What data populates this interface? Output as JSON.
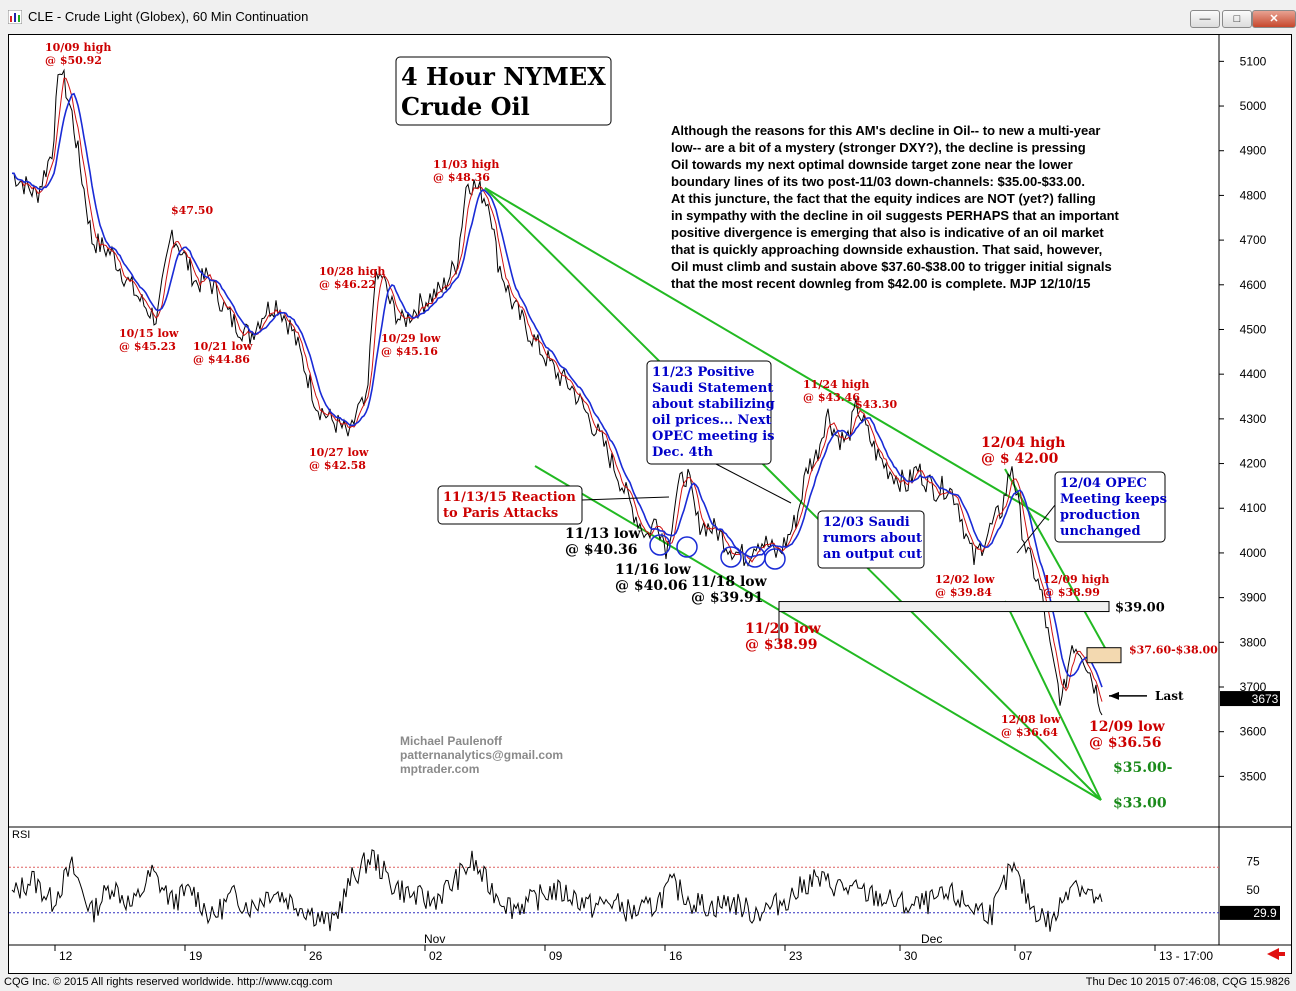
{
  "window": {
    "title": "CLE - Crude Light (Globex), 60 Min Continuation",
    "buttons": [
      "minimize-button",
      "restore-button",
      "close-button"
    ]
  },
  "status": {
    "left": "CQG Inc. © 2015 All rights reserved worldwide. http://www.cqg.com",
    "right": "Thu Dec 10 2015 07:46:08, CQG 15.9826"
  },
  "chart_data": {
    "type": "line",
    "title": "4 Hour NYMEX\nCrude Oil",
    "title_lines": [
      "4 Hour NYMEX",
      "Crude Oil"
    ],
    "ylim": [
      3380,
      5150
    ],
    "y_ticks": [
      "5100",
      "5000",
      "4900",
      "4800",
      "4700",
      "4600",
      "4500",
      "4400",
      "4300",
      "4200",
      "4100",
      "4000",
      "3900",
      "3800",
      "3700",
      "3600",
      "3500"
    ],
    "x_ticks": [
      "12",
      "19",
      "26",
      "02",
      "09",
      "16",
      "23",
      "30",
      "07",
      "13 - 17:00"
    ],
    "month_labels": [
      "Nov",
      "Dec"
    ],
    "last_value": "3673",
    "series": [
      {
        "name": "price",
        "x": [
          0,
          25,
          40,
          48,
          60,
          80,
          100,
          115,
          130,
          145,
          160,
          175,
          185,
          195,
          205,
          220,
          238,
          252,
          265,
          280,
          292,
          305,
          318,
          330,
          338,
          345,
          355,
          362,
          370,
          378,
          390,
          410,
          430,
          445,
          455,
          468,
          478,
          485,
          500,
          515,
          530,
          545,
          560,
          575,
          590,
          605,
          620,
          635,
          645,
          655,
          665,
          675,
          685,
          695,
          705,
          715,
          725,
          735,
          745,
          755,
          765,
          775,
          785,
          795,
          805,
          815,
          825,
          835,
          845,
          855,
          865,
          875,
          885,
          895,
          905,
          915,
          925,
          935,
          945,
          955,
          962,
          970,
          980,
          990,
          1000,
          1008,
          1015,
          1022,
          1030,
          1040,
          1050,
          1060,
          1070,
          1080,
          1090
        ],
        "values": [
          4850,
          4800,
          4900,
          5092,
          4980,
          4700,
          4670,
          4610,
          4560,
          4523,
          4720,
          4650,
          4600,
          4620,
          4580,
          4520,
          4486,
          4540,
          4560,
          4500,
          4420,
          4330,
          4300,
          4280,
          4258,
          4320,
          4330,
          4600,
          4622,
          4560,
          4516,
          4560,
          4590,
          4650,
          4836,
          4810,
          4780,
          4660,
          4560,
          4500,
          4450,
          4400,
          4370,
          4310,
          4250,
          4180,
          4100,
          4036,
          4080,
          4006,
          4140,
          4180,
          4070,
          4060,
          4050,
          4020,
          4000,
          3991,
          4030,
          4020,
          3995,
          4030,
          4080,
          4190,
          4220,
          4316,
          4260,
          4250,
          4330,
          4270,
          4220,
          4190,
          4170,
          4150,
          4190,
          4160,
          4140,
          4150,
          4120,
          4030,
          3984,
          4020,
          4060,
          4100,
          4200,
          4080,
          4000,
          3960,
          3900,
          3760,
          3664,
          3800,
          3780,
          3720,
          3656
        ]
      },
      {
        "name": "rsi",
        "x": [
          0,
          20,
          40,
          60,
          80,
          100,
          120,
          140,
          160,
          180,
          200,
          220,
          240,
          260,
          280,
          300,
          320,
          340,
          360,
          380,
          400,
          420,
          440,
          460,
          480,
          500,
          520,
          540,
          560,
          580,
          600,
          620,
          640,
          660,
          680,
          700,
          720,
          740,
          760,
          780,
          800,
          820,
          840,
          860,
          880,
          900,
          920,
          940,
          960,
          980,
          1000,
          1020,
          1040,
          1060,
          1080,
          1090
        ],
        "values": [
          45,
          60,
          40,
          70,
          30,
          55,
          35,
          65,
          40,
          50,
          25,
          45,
          35,
          50,
          40,
          30,
          20,
          60,
          80,
          55,
          45,
          40,
          55,
          75,
          50,
          35,
          40,
          50,
          45,
          35,
          40,
          30,
          35,
          55,
          40,
          35,
          40,
          30,
          35,
          45,
          60,
          55,
          50,
          45,
          40,
          35,
          40,
          45,
          35,
          30,
          70,
          35,
          20,
          60,
          45,
          35
        ]
      }
    ],
    "rsi": {
      "label": "RSI",
      "levels": [
        "75",
        "50"
      ],
      "last": "29.9"
    },
    "levels": {
      "h39": "$39.00",
      "zone": "$37.60-$38.00",
      "t35": "$35.00-",
      "t33": "$33.00",
      "last": "Last"
    },
    "annotations": {
      "a1009": [
        "10/09 high",
        "@ $50.92"
      ],
      "a4750": [
        "$47.50"
      ],
      "a1015": [
        "10/15 low",
        "@ $45.23"
      ],
      "a1021": [
        "10/21 low",
        "@ $44.86"
      ],
      "a1027": [
        "10/27 low",
        "@ $42.58"
      ],
      "a1028": [
        "10/28 high",
        "@ $46.22"
      ],
      "a1029": [
        "10/29 low",
        "@ $45.16"
      ],
      "a1103": [
        "11/03 high",
        "@ $48.36"
      ],
      "a1124": [
        "11/24 high",
        "@ $43.46"
      ],
      "a4330": [
        "$43.30"
      ],
      "a1202": [
        "12/02 low",
        "@ $39.84"
      ],
      "a1208": [
        "12/08 low",
        "@ $36.64"
      ],
      "a1209h": [
        "12/09 high",
        "@ $38.99"
      ],
      "a1204": [
        "12/04 high",
        "@ $ 42.00"
      ],
      "a1209l": [
        "12/09 low",
        "@ $36.56"
      ],
      "a1120": [
        "11/20 low",
        "@ $38.99"
      ],
      "a1113": [
        "11/13 low",
        "@ $40.36"
      ],
      "a1116": [
        "11/16 low",
        "@ $40.06"
      ],
      "a1118": [
        "11/18 low",
        "@ $39.91"
      ]
    },
    "boxes": {
      "paris": [
        "11/13/15 Reaction",
        "to Paris Attacks"
      ],
      "saudi1123": [
        "11/23 Positive",
        "Saudi Statement",
        "about stabilizing",
        "oil prices... Next",
        "OPEC meeting is",
        "Dec. 4th"
      ],
      "saudi1203": [
        "12/03 Saudi",
        "rumors about",
        "an output cut"
      ],
      "opec1204": [
        "12/04 OPEC",
        "Meeting keeps",
        "production",
        "unchanged"
      ]
    },
    "commentary": [
      "Although the reasons for this AM's decline in Oil-- to new a multi-year",
      "low-- are a bit of a mystery (stronger DXY?), the decline is pressing",
      "Oil towards my next optimal downside target zone near the lower",
      "boundary lines of its two post-11/03 down-channels: $35.00-$33.00.",
      "At this juncture, the fact that the equity indices are NOT (yet?) falling",
      "in sympathy with the decline in oil suggests PERHAPS that an important",
      "positive divergence is emerging that also is indicative of an oil market",
      "that is quickly approaching downside exhaustion. That said, however,",
      "Oil must climb and sustain above $37.60-$38.00 to trigger initial signals",
      "that the most recent downleg from $42.00 is complete. MJP 12/10/15"
    ],
    "signature": [
      "Michael Paulenoff",
      "patternanalytics@gmail.com",
      "mptrader.com"
    ],
    "colors": {
      "price": "#000000",
      "ma_blue": "#1a2bd6",
      "ma_red": "#d01010",
      "channel": "#22b922",
      "annot_red": "#cc0000",
      "annot_blue": "#0000c8",
      "target_green": "#1a8a1a"
    }
  }
}
